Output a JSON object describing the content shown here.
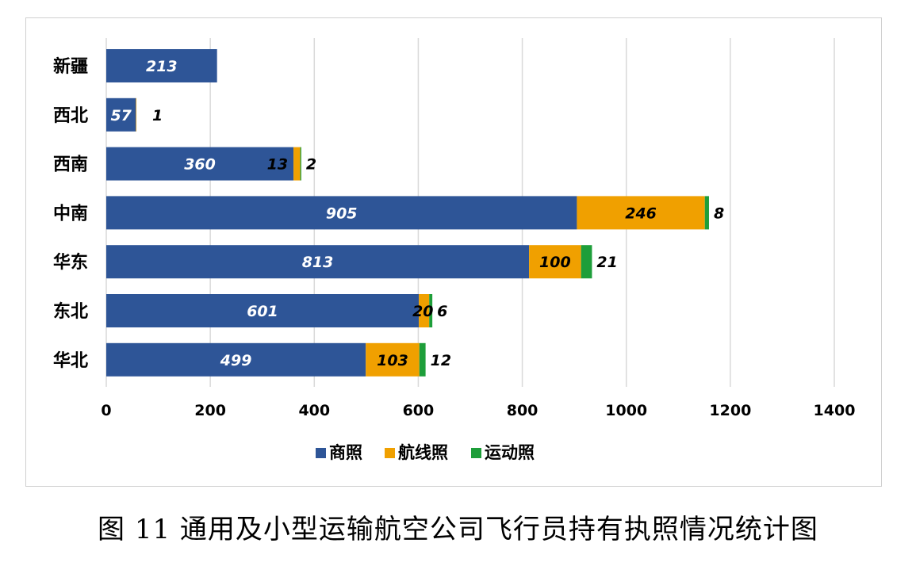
{
  "caption": "图 11  通用及小型运输航空公司飞行员持有执照情况统计图",
  "chart_data": {
    "type": "bar",
    "orientation": "horizontal",
    "stacked": true,
    "categories": [
      "新疆",
      "西北",
      "西南",
      "中南",
      "华东",
      "东北",
      "华北"
    ],
    "series": [
      {
        "name": "商照",
        "color": "#2e5597",
        "values": [
          213,
          57,
          360,
          905,
          813,
          601,
          499
        ]
      },
      {
        "name": "航线照",
        "color": "#f0a000",
        "values": [
          0,
          1,
          13,
          246,
          100,
          20,
          103
        ]
      },
      {
        "name": "运动照",
        "color": "#1e9e3a",
        "values": [
          0,
          0,
          2,
          8,
          21,
          6,
          12
        ]
      }
    ],
    "data_labels": [
      [
        "213",
        "",
        ""
      ],
      [
        "57",
        "1",
        ""
      ],
      [
        "360",
        "13",
        "2"
      ],
      [
        "905",
        "246",
        "8"
      ],
      [
        "813",
        "100",
        "21"
      ],
      [
        "601",
        "20",
        "6"
      ],
      [
        "499",
        "103",
        "12"
      ]
    ],
    "xlim": [
      0,
      1400
    ],
    "xticks": [
      0,
      200,
      400,
      600,
      800,
      1000,
      1200,
      1400
    ],
    "grid": true,
    "legend_position": "bottom"
  }
}
